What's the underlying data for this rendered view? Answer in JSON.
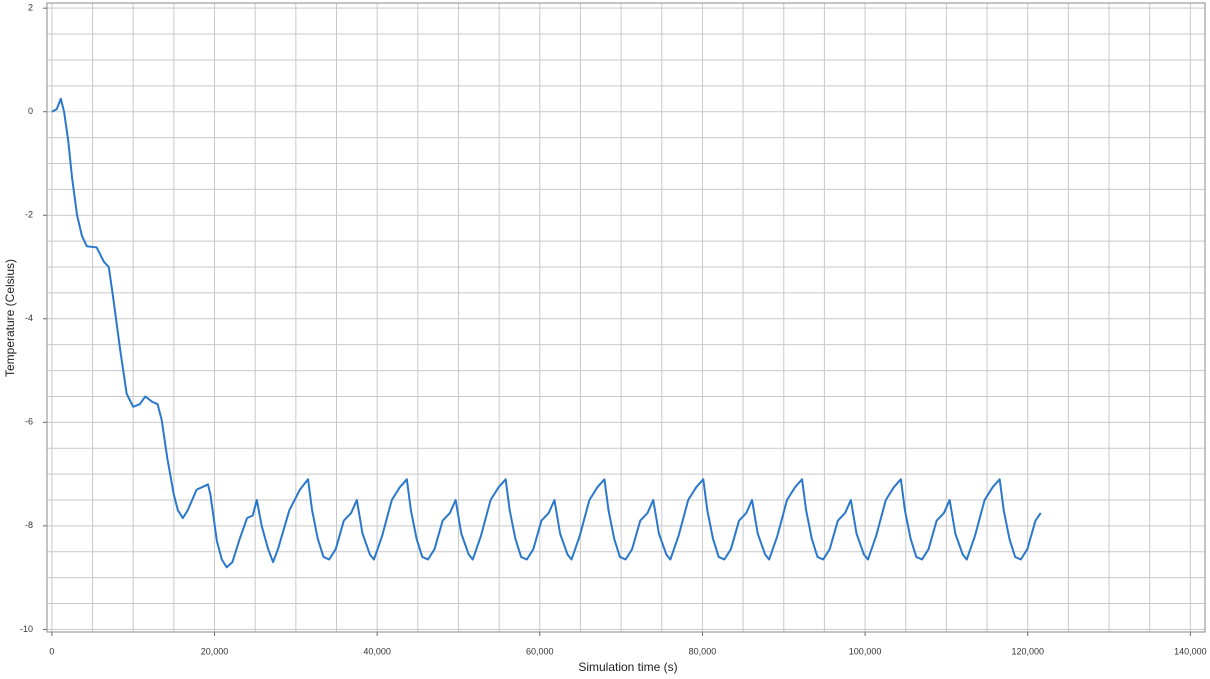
{
  "chart_data": {
    "type": "line",
    "x_label": "Simulation time (s)",
    "y_label": "Temperature (Celsius)",
    "xlim": [
      -600,
      141800
    ],
    "ylim": [
      -10.05,
      2.1
    ],
    "xticks": [
      0,
      {
        "value": 20000,
        "label": "20,000"
      },
      {
        "value": 40000,
        "label": "40,000"
      },
      {
        "value": 60000,
        "label": "60,000"
      },
      {
        "value": 80000,
        "label": "80,000"
      },
      {
        "value": 100000,
        "label": "100,000"
      },
      {
        "value": 120000,
        "label": "120,000"
      },
      {
        "value": 140000,
        "label": "140,000"
      }
    ],
    "yticks": [
      2,
      0,
      -2,
      -4,
      -6,
      -8,
      -10
    ],
    "grid": true,
    "minor_grid": {
      "x": 5000,
      "y": 0.5
    },
    "series": [
      {
        "color": "#2a78cc",
        "x": [
          0,
          600,
          1100,
          1500,
          2000,
          2500,
          3100,
          3700,
          4300,
          5500,
          6400,
          7000,
          7500,
          8400,
          9200,
          10000,
          10800,
          11500,
          12300,
          13000,
          13500,
          14200,
          15000,
          15500,
          16100,
          16700,
          17800,
          18500,
          19200,
          19500,
          20300,
          20900,
          21500,
          22200,
          23100,
          24000,
          24700,
          25200,
          25800,
          26600,
          27200,
          27800,
          29200,
          30500,
          31500,
          32000,
          32700,
          33400,
          34100,
          34900,
          35900,
          36800,
          37500,
          38200,
          39100,
          39600,
          40600,
          41800,
          42800,
          43650,
          44150,
          44850,
          45550,
          46250,
          47050,
          48050,
          48950,
          49650,
          50350,
          51250,
          51750,
          52750,
          53950,
          54950,
          55800,
          56300,
          57000,
          57700,
          58400,
          59200,
          60200,
          61100,
          61800,
          62500,
          63400,
          63900,
          64900,
          66100,
          67100,
          67950,
          68450,
          69150,
          69850,
          70550,
          71350,
          72350,
          73250,
          73950,
          74650,
          75550,
          76050,
          77050,
          78250,
          79250,
          80100,
          80600,
          81300,
          82000,
          82700,
          83500,
          84500,
          85400,
          86100,
          86800,
          87700,
          88200,
          89200,
          90400,
          91400,
          92250,
          92750,
          93450,
          94150,
          94850,
          95650,
          96650,
          97550,
          98250,
          98950,
          99850,
          100350,
          101350,
          102550,
          103550,
          104400,
          104900,
          105600,
          106300,
          107000,
          107800,
          108800,
          109700,
          110400,
          111100,
          112000,
          112500,
          113500,
          114700,
          115700,
          116550,
          117050,
          117750,
          118450,
          119150,
          119950,
          120950,
          121600
        ],
        "values": [
          0,
          0.05,
          0.25,
          0,
          -0.55,
          -1.3,
          -2.0,
          -2.4,
          -2.6,
          -2.62,
          -2.9,
          -3.0,
          -3.55,
          -4.6,
          -5.45,
          -5.7,
          -5.65,
          -5.5,
          -5.6,
          -5.65,
          -5.95,
          -6.7,
          -7.4,
          -7.7,
          -7.85,
          -7.7,
          -7.3,
          -7.25,
          -7.2,
          -7.4,
          -8.3,
          -8.65,
          -8.8,
          -8.7,
          -8.25,
          -7.85,
          -7.8,
          -7.5,
          -8.0,
          -8.45,
          -8.7,
          -8.45,
          -7.7,
          -7.3,
          -7.1,
          -7.7,
          -8.25,
          -8.6,
          -8.65,
          -8.45,
          -7.9,
          -7.75,
          -7.5,
          -8.15,
          -8.55,
          -8.65,
          -8.2,
          -7.5,
          -7.25,
          -7.1,
          -7.7,
          -8.25,
          -8.6,
          -8.65,
          -8.45,
          -7.9,
          -7.75,
          -7.5,
          -8.15,
          -8.55,
          -8.65,
          -8.2,
          -7.5,
          -7.25,
          -7.1,
          -7.7,
          -8.25,
          -8.6,
          -8.65,
          -8.45,
          -7.9,
          -7.75,
          -7.5,
          -8.15,
          -8.55,
          -8.65,
          -8.2,
          -7.5,
          -7.25,
          -7.1,
          -7.7,
          -8.25,
          -8.6,
          -8.65,
          -8.45,
          -7.9,
          -7.75,
          -7.5,
          -8.15,
          -8.55,
          -8.65,
          -8.2,
          -7.5,
          -7.25,
          -7.1,
          -7.7,
          -8.25,
          -8.6,
          -8.65,
          -8.45,
          -7.9,
          -7.75,
          -7.5,
          -8.15,
          -8.55,
          -8.65,
          -8.2,
          -7.5,
          -7.25,
          -7.1,
          -7.7,
          -8.25,
          -8.6,
          -8.65,
          -8.45,
          -7.9,
          -7.75,
          -7.5,
          -8.15,
          -8.55,
          -8.65,
          -8.2,
          -7.5,
          -7.25,
          -7.1,
          -7.7,
          -8.25,
          -8.6,
          -8.65,
          -8.45,
          -7.9,
          -7.75,
          -7.5,
          -8.15,
          -8.55,
          -8.65,
          -8.2,
          -7.5,
          -7.25,
          -7.1,
          -7.7,
          -8.25,
          -8.6,
          -8.65,
          -8.45,
          -7.9,
          -7.75
        ]
      }
    ]
  }
}
